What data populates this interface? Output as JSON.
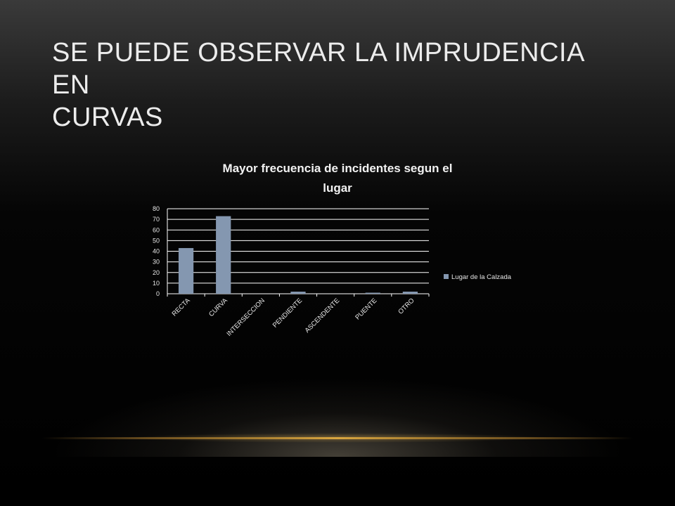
{
  "slide": {
    "title": "SE PUEDE OBSERVAR LA IMPRUDENCIA EN\nCURVAS"
  },
  "chart_data": {
    "type": "bar",
    "title": "Mayor frecuencia de incidentes segun el\nlugar",
    "categories": [
      "RECTA",
      "CURVA",
      "INTERSECCION",
      "PENDIENTE",
      "ASCENDENTE",
      "PUENTE",
      "OTRO"
    ],
    "series": [
      {
        "name": "Lugar de la Calzada",
        "values": [
          43,
          73,
          0,
          2,
          0,
          1,
          2
        ],
        "color": "#8497b0"
      }
    ],
    "ylim": [
      0,
      80
    ],
    "yticks": [
      0,
      10,
      20,
      30,
      40,
      50,
      60,
      70,
      80
    ],
    "grid": true,
    "legend_position": "right",
    "xlabel": "",
    "ylabel": ""
  },
  "colors": {
    "text": "#ececec",
    "gridline": "#ffffff",
    "accent_line": "#d9a640"
  }
}
